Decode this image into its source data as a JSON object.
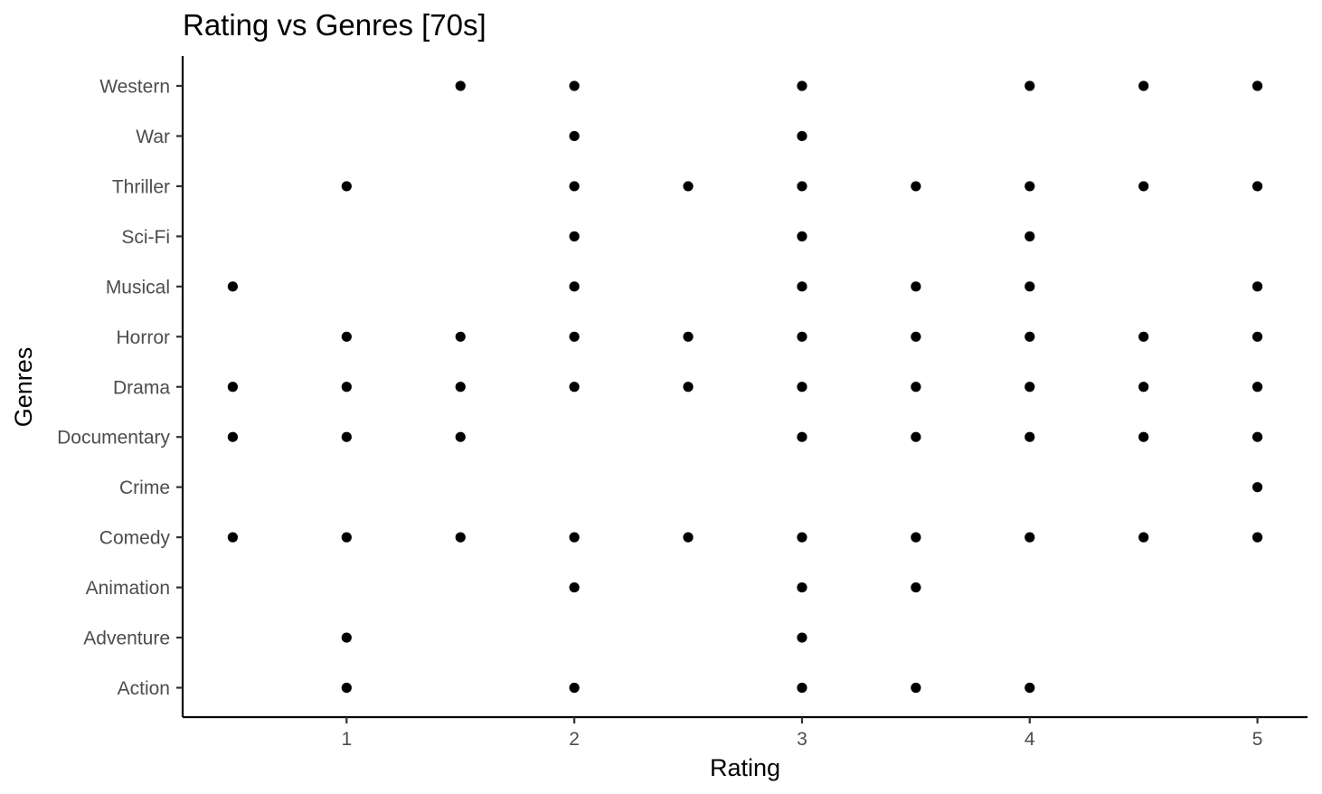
{
  "chart_data": {
    "type": "scatter",
    "title": "Rating vs Genres [70s]",
    "xlabel": "Rating",
    "ylabel": "Genres",
    "xlim": [
      0.28,
      5.22
    ],
    "x_ticks": [
      1,
      2,
      3,
      4,
      5
    ],
    "categories": [
      "Action",
      "Adventure",
      "Animation",
      "Comedy",
      "Crime",
      "Documentary",
      "Drama",
      "Horror",
      "Musical",
      "Sci-Fi",
      "Thriller",
      "War",
      "Western"
    ],
    "grid": false,
    "legend": "none",
    "point_color": "#000000",
    "points": [
      {
        "genre": "Western",
        "ratings": [
          1.5,
          2,
          3,
          4,
          4.5,
          5
        ]
      },
      {
        "genre": "War",
        "ratings": [
          2,
          3
        ]
      },
      {
        "genre": "Thriller",
        "ratings": [
          1,
          2,
          2.5,
          3,
          3.5,
          4,
          4.5,
          5
        ]
      },
      {
        "genre": "Sci-Fi",
        "ratings": [
          2,
          3,
          4
        ]
      },
      {
        "genre": "Musical",
        "ratings": [
          0.5,
          2,
          3,
          3.5,
          4,
          5
        ]
      },
      {
        "genre": "Horror",
        "ratings": [
          1,
          1.5,
          2,
          2.5,
          3,
          3.5,
          4,
          4.5,
          5
        ]
      },
      {
        "genre": "Drama",
        "ratings": [
          0.5,
          1,
          1.5,
          2,
          2.5,
          3,
          3.5,
          4,
          4.5,
          5
        ]
      },
      {
        "genre": "Documentary",
        "ratings": [
          0.5,
          1,
          1.5,
          3,
          3.5,
          4,
          4.5,
          5
        ]
      },
      {
        "genre": "Crime",
        "ratings": [
          5
        ]
      },
      {
        "genre": "Comedy",
        "ratings": [
          0.5,
          1,
          1.5,
          2,
          2.5,
          3,
          3.5,
          4,
          4.5,
          5
        ]
      },
      {
        "genre": "Animation",
        "ratings": [
          2,
          3,
          3.5
        ]
      },
      {
        "genre": "Adventure",
        "ratings": [
          1,
          3
        ]
      },
      {
        "genre": "Action",
        "ratings": [
          1,
          2,
          3,
          3.5,
          4
        ]
      }
    ]
  }
}
